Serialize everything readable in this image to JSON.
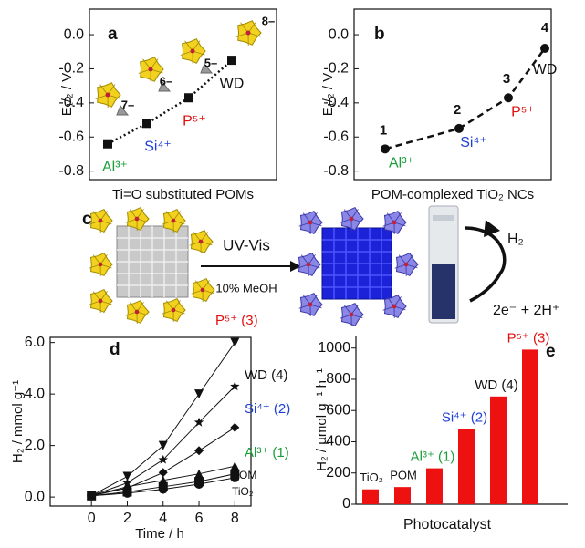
{
  "chart_data": [
    {
      "type": "line",
      "panel": "a",
      "x_label": "Ti=O substituted POMs",
      "y_label": "E₁/₂ / V",
      "categories": [
        "Al³⁺",
        "Si⁴⁺",
        "P⁵⁺",
        "WD"
      ],
      "label_colors": [
        "#1a9e3a",
        "#1f3fd6",
        "#e01010",
        "#111111"
      ],
      "charges": [
        "7–",
        "6–",
        "5–",
        "8–"
      ],
      "values": [
        -0.64,
        -0.52,
        -0.37,
        -0.15
      ],
      "color": "#111111",
      "marker": "square",
      "line_style": "dotted",
      "ylim": [
        -0.85,
        0.15
      ],
      "yticks": [
        -0.8,
        -0.6,
        -0.4,
        -0.2,
        {
          "value": 0,
          "label": "0.0"
        }
      ]
    },
    {
      "type": "line",
      "panel": "b",
      "x_label": "POM-complexed TiO₂ NCs",
      "y_label": "E₁/₂ / V",
      "categories": [
        "Al³⁺",
        "Si⁴⁺",
        "P⁵⁺",
        "WD"
      ],
      "label_colors": [
        "#1a9e3a",
        "#1f3fd6",
        "#e01010",
        "#111111"
      ],
      "point_labels": [
        "1",
        "2",
        "3",
        "4"
      ],
      "values": [
        -0.67,
        -0.55,
        -0.37,
        -0.08
      ],
      "color": "#111111",
      "marker": "circle",
      "line_style": "dashed",
      "ylim": [
        -0.85,
        0.15
      ],
      "yticks": [
        -0.8,
        -0.6,
        -0.4,
        -0.2,
        {
          "value": 0,
          "label": "0.0"
        }
      ]
    },
    {
      "type": "scatter-line",
      "panel": "d",
      "x_label": "Time / h",
      "y_label": "H₂ / mmol g⁻¹",
      "x": [
        0,
        2,
        4,
        6,
        8
      ],
      "xlim": [
        -2.3,
        8.9
      ],
      "xticks": [
        0,
        2,
        4,
        6,
        8
      ],
      "ylim": [
        -0.35,
        6.2
      ],
      "yticks": [
        {
          "value": 0,
          "label": "0.0"
        },
        {
          "value": 2,
          "label": "2.0"
        },
        {
          "value": 4,
          "label": "4.0"
        },
        {
          "value": 6,
          "label": "6.0"
        }
      ],
      "series": [
        {
          "name": "P⁵⁺ (3)",
          "color": "#e01010",
          "marker": "triangle-down",
          "values": [
            0.05,
            0.8,
            2.0,
            4.0,
            6.0
          ]
        },
        {
          "name": "WD (4)",
          "color": "#111111",
          "marker": "star",
          "values": [
            0.05,
            0.55,
            1.45,
            2.9,
            4.3
          ]
        },
        {
          "name": "Si⁴⁺ (2)",
          "color": "#1f3fd6",
          "marker": "diamond",
          "values": [
            0.05,
            0.35,
            0.95,
            1.8,
            2.7
          ]
        },
        {
          "name": "Al³⁺ (1)",
          "color": "#1a9e3a",
          "marker": "triangle-up",
          "values": [
            0.05,
            0.4,
            0.65,
            0.9,
            1.2
          ]
        },
        {
          "name": "POM",
          "color": "#111111",
          "marker": "square",
          "values": [
            0.05,
            0.2,
            0.4,
            0.6,
            0.9
          ]
        },
        {
          "name": "TiO₂",
          "color": "#111111",
          "marker": "circle",
          "values": [
            0.05,
            0.15,
            0.3,
            0.5,
            0.75
          ]
        }
      ]
    },
    {
      "type": "bar",
      "panel": "e",
      "x_label": "Photocatalyst",
      "y_label": "H₂ / µmol g⁻¹ h⁻¹",
      "categories": [
        "TiO₂",
        "POM",
        "Al³⁺ (1)",
        "Si⁴⁺ (2)",
        "WD (4)",
        "P⁵⁺ (3)"
      ],
      "label_colors": [
        "#111111",
        "#111111",
        "#1a9e3a",
        "#1f3fd6",
        "#111111",
        "#e01010"
      ],
      "values": [
        95,
        110,
        230,
        480,
        690,
        990
      ],
      "color": "#ee1111",
      "ylim": [
        0,
        1080
      ],
      "yticks": [
        0,
        200,
        400,
        600,
        800,
        1000
      ]
    }
  ],
  "scheme": {
    "panel": "c",
    "arrow_label": "UV-Vis",
    "condition": "10% MeOH",
    "product": "H₂",
    "reactant": "2e⁻ + 2H⁺"
  }
}
